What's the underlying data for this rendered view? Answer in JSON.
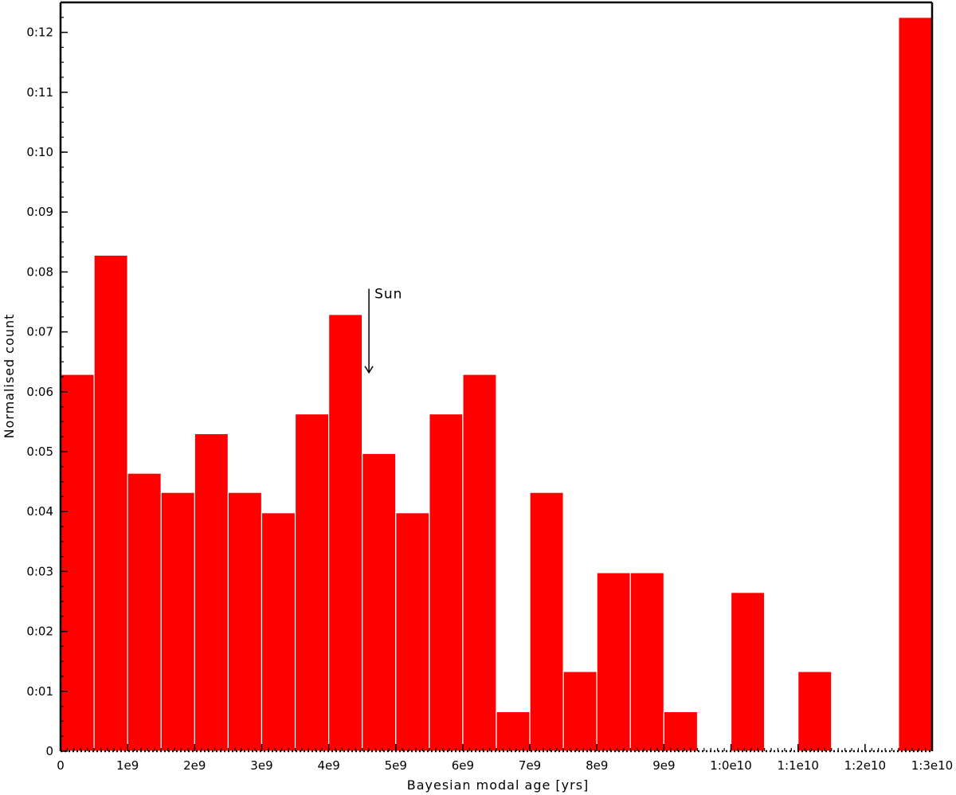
{
  "chart_data": {
    "type": "bar",
    "title": "",
    "xlabel": "Bayesian modal age [yrs]",
    "ylabel": "Normalised count",
    "xlim": [
      0,
      13000000000
    ],
    "ylim": [
      0,
      0.125
    ],
    "bin_width": 500000000,
    "bin_starts": [
      0,
      500000000,
      1000000000,
      1500000000,
      2000000000,
      2500000000,
      3000000000,
      3500000000,
      4000000000,
      4500000000,
      5000000000,
      5500000000,
      6000000000,
      6500000000,
      7000000000,
      7500000000,
      8000000000,
      8500000000,
      9000000000,
      9500000000,
      10000000000,
      10500000000,
      11000000000,
      11500000000,
      12000000000,
      12500000000
    ],
    "values": [
      0.0629,
      0.0828,
      0.0464,
      0.0432,
      0.053,
      0.0432,
      0.0398,
      0.0563,
      0.0729,
      0.0497,
      0.0398,
      0.0563,
      0.0629,
      0.0066,
      0.0432,
      0.0133,
      0.0298,
      0.0298,
      0.0066,
      0,
      0.0265,
      0,
      0.0133,
      0,
      0,
      0.1225
    ],
    "bar_color": "#ff0000",
    "edge_color": "#ffffff",
    "x_ticks": [
      0,
      1000000000,
      2000000000,
      3000000000,
      4000000000,
      5000000000,
      6000000000,
      7000000000,
      8000000000,
      9000000000,
      10000000000,
      11000000000,
      12000000000,
      13000000000
    ],
    "x_tick_labels": [
      "0",
      "1e9",
      "2e9",
      "3e9",
      "4e9",
      "5e9",
      "6e9",
      "7e9",
      "8e9",
      "9e9",
      "1:0e10",
      "1:1e10",
      "1:2e10",
      "1:3e10"
    ],
    "y_ticks": [
      0,
      0.01,
      0.02,
      0.03,
      0.04,
      0.05,
      0.06,
      0.07,
      0.08,
      0.09,
      0.1,
      0.11,
      0.12
    ],
    "y_tick_labels": [
      "0",
      "0:01",
      "0:02",
      "0:03",
      "0:04",
      "0:05",
      "0:06",
      "0:07",
      "0:08",
      "0:09",
      "0:10",
      "0:11",
      "0:12"
    ],
    "grid": false,
    "legend": "none",
    "annotations": [
      {
        "text": "Sun",
        "x": 4600000000,
        "y_top": 0.0772,
        "y_tip": 0.0632
      }
    ]
  }
}
